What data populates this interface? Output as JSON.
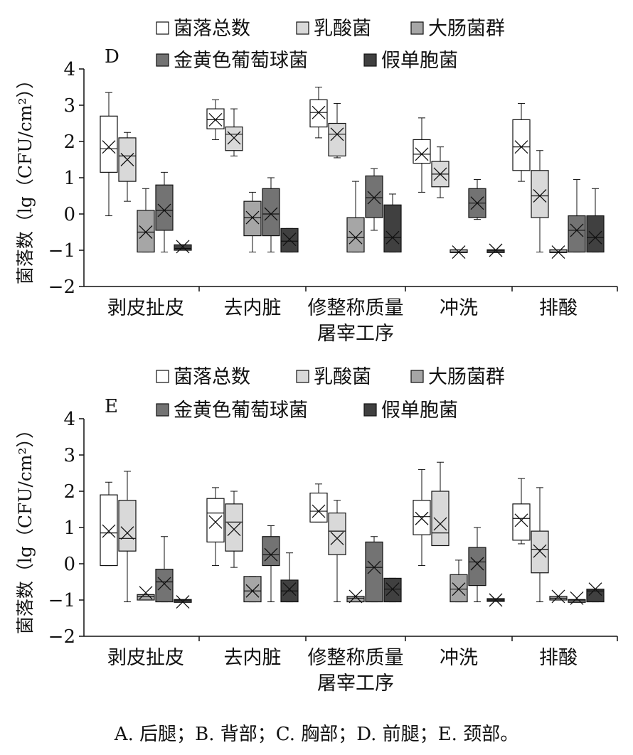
{
  "caption": "A. 后腿；B. 背部；C. 胸部；D. 前腿；E. 颈部。",
  "chart_data": [
    {
      "type": "box",
      "panel_label": "D",
      "xlabel": "屠宰工序",
      "ylabel": "菌落数（lg（CFU/cm²））",
      "ylim": [
        -2,
        4
      ],
      "yticks": [
        "−2",
        "−1",
        "0",
        "1",
        "2",
        "3",
        "4"
      ],
      "categories": [
        "剥皮扯皮",
        "去内脏",
        "修整称质量",
        "冲洗",
        "排酸"
      ],
      "legend": [
        "菌落总数",
        "乳酸菌",
        "大肠菌群",
        "金黄色葡萄球菌",
        "假单胞菌"
      ],
      "colors": [
        "#ffffff",
        "#d9d9d9",
        "#a6a6a6",
        "#737373",
        "#404040"
      ],
      "series": [
        {
          "name": "菌落总数",
          "boxes": [
            {
              "min": -0.05,
              "q1": 1.15,
              "median": 1.8,
              "q3": 2.7,
              "max": 3.35,
              "mean": 1.85
            },
            {
              "min": 2.05,
              "q1": 2.35,
              "median": 2.6,
              "q3": 2.9,
              "max": 3.15,
              "mean": 2.6
            },
            {
              "min": 2.1,
              "q1": 2.4,
              "median": 2.8,
              "q3": 3.15,
              "max": 3.5,
              "mean": 2.8
            },
            {
              "min": 0.6,
              "q1": 1.4,
              "median": 1.65,
              "q3": 2.05,
              "max": 2.65,
              "mean": 1.65
            },
            {
              "min": 0.9,
              "q1": 1.2,
              "median": 1.85,
              "q3": 2.6,
              "max": 3.05,
              "mean": 1.85
            }
          ]
        },
        {
          "name": "乳酸菌",
          "boxes": [
            {
              "min": 0.35,
              "q1": 0.9,
              "median": 1.6,
              "q3": 2.1,
              "max": 2.25,
              "mean": 1.5
            },
            {
              "min": 1.6,
              "q1": 1.75,
              "median": 2.2,
              "q3": 2.4,
              "max": 2.9,
              "mean": 2.1
            },
            {
              "min": 1.55,
              "q1": 1.6,
              "median": 2.2,
              "q3": 2.5,
              "max": 3.05,
              "mean": 2.2
            },
            {
              "min": 0.45,
              "q1": 0.75,
              "median": 1.1,
              "q3": 1.45,
              "max": 1.85,
              "mean": 1.1
            },
            {
              "min": -1.05,
              "q1": -0.1,
              "median": 0.5,
              "q3": 1.2,
              "max": 1.75,
              "mean": 0.5
            }
          ]
        },
        {
          "name": "大肠菌群",
          "boxes": [
            {
              "min": -1.05,
              "q1": -1.05,
              "median": -0.5,
              "q3": 0.1,
              "max": 0.7,
              "mean": -0.5
            },
            {
              "min": -1.05,
              "q1": -0.6,
              "median": -0.1,
              "q3": 0.35,
              "max": 0.6,
              "mean": -0.1
            },
            {
              "min": -1.05,
              "q1": -1.05,
              "median": -0.65,
              "q3": -0.1,
              "max": 0.9,
              "mean": -0.65
            },
            {
              "min": -1.05,
              "q1": -1.05,
              "median": -1.05,
              "q3": -1.0,
              "max": -1.0,
              "mean": -1.05
            },
            {
              "min": -1.05,
              "q1": -1.05,
              "median": -1.05,
              "q3": -1.0,
              "max": -1.0,
              "mean": -1.05
            }
          ]
        },
        {
          "name": "金黄色葡萄球菌",
          "boxes": [
            {
              "min": -1.05,
              "q1": -0.45,
              "median": 0.1,
              "q3": 0.8,
              "max": 1.15,
              "mean": 0.1
            },
            {
              "min": -1.05,
              "q1": -0.6,
              "median": 0.0,
              "q3": 0.7,
              "max": 1.0,
              "mean": 0.0
            },
            {
              "min": -0.45,
              "q1": -0.1,
              "median": 0.45,
              "q3": 1.05,
              "max": 1.25,
              "mean": 0.45
            },
            {
              "min": -0.15,
              "q1": -0.1,
              "median": 0.3,
              "q3": 0.7,
              "max": 0.95,
              "mean": 0.3
            },
            {
              "min": -1.05,
              "q1": -1.05,
              "median": -0.45,
              "q3": -0.05,
              "max": 0.95,
              "mean": -0.45
            }
          ]
        },
        {
          "name": "假单胞菌",
          "boxes": [
            {
              "min": -1.0,
              "q1": -1.0,
              "median": -0.95,
              "q3": -0.85,
              "max": -0.85,
              "mean": -0.9
            },
            {
              "min": -1.05,
              "q1": -1.05,
              "median": -0.75,
              "q3": -0.4,
              "max": -0.4,
              "mean": -0.7
            },
            {
              "min": -1.05,
              "q1": -1.05,
              "median": -0.65,
              "q3": 0.25,
              "max": 0.55,
              "mean": -0.65
            },
            {
              "min": -1.05,
              "q1": -1.05,
              "median": -1.0,
              "q3": -1.0,
              "max": -1.0,
              "mean": -1.0
            },
            {
              "min": -1.05,
              "q1": -1.05,
              "median": -0.65,
              "q3": -0.05,
              "max": 0.7,
              "mean": -0.65
            }
          ]
        }
      ]
    },
    {
      "type": "box",
      "panel_label": "E",
      "xlabel": "屠宰工序",
      "ylabel": "菌落数（lg（CFU/cm²））",
      "ylim": [
        -2,
        4
      ],
      "yticks": [
        "−2",
        "−1",
        "0",
        "1",
        "2",
        "3",
        "4"
      ],
      "categories": [
        "剥皮扯皮",
        "去内脏",
        "修整称质量",
        "冲洗",
        "排酸"
      ],
      "legend": [
        "菌落总数",
        "乳酸菌",
        "大肠菌群",
        "金黄色葡萄球菌",
        "假单胞菌"
      ],
      "colors": [
        "#ffffff",
        "#d9d9d9",
        "#a6a6a6",
        "#737373",
        "#404040"
      ],
      "series": [
        {
          "name": "菌落总数",
          "boxes": [
            {
              "min": -0.05,
              "q1": -0.05,
              "median": 0.85,
              "q3": 1.9,
              "max": 2.25,
              "mean": 0.9
            },
            {
              "min": -0.05,
              "q1": 0.6,
              "median": 1.4,
              "q3": 1.8,
              "max": 2.1,
              "mean": 1.15
            },
            {
              "min": 1.15,
              "q1": 1.15,
              "median": 1.45,
              "q3": 1.95,
              "max": 2.2,
              "mean": 1.45
            },
            {
              "min": -0.05,
              "q1": 0.8,
              "median": 1.3,
              "q3": 1.75,
              "max": 2.6,
              "mean": 1.25
            },
            {
              "min": 0.55,
              "q1": 0.65,
              "median": 1.25,
              "q3": 1.65,
              "max": 2.35,
              "mean": 1.2
            }
          ]
        },
        {
          "name": "乳酸菌",
          "boxes": [
            {
              "min": -1.05,
              "q1": 0.35,
              "median": 0.7,
              "q3": 1.75,
              "max": 2.55,
              "mean": 0.85
            },
            {
              "min": -0.1,
              "q1": 0.35,
              "median": 1.15,
              "q3": 1.65,
              "max": 2.0,
              "mean": 0.95
            },
            {
              "min": -1.05,
              "q1": 0.25,
              "median": 0.9,
              "q3": 1.4,
              "max": 1.75,
              "mean": 0.7
            },
            {
              "min": 0.5,
              "q1": 0.5,
              "median": 0.85,
              "q3": 2.0,
              "max": 2.8,
              "mean": 1.1
            },
            {
              "min": -1.05,
              "q1": -0.25,
              "median": 0.4,
              "q3": 0.9,
              "max": 2.1,
              "mean": 0.35
            }
          ]
        },
        {
          "name": "大肠菌群",
          "boxes": [
            {
              "min": -1.0,
              "q1": -1.0,
              "median": -0.9,
              "q3": -0.85,
              "max": -0.85,
              "mean": -0.8
            },
            {
              "min": -1.05,
              "q1": -1.05,
              "median": -0.75,
              "q3": -0.35,
              "max": -0.35,
              "mean": -0.75
            },
            {
              "min": -1.05,
              "q1": -1.05,
              "median": -0.95,
              "q3": -0.9,
              "max": -0.9,
              "mean": -0.9
            },
            {
              "min": -1.05,
              "q1": -1.05,
              "median": -0.7,
              "q3": -0.3,
              "max": 0.1,
              "mean": -0.7
            },
            {
              "min": -1.0,
              "q1": -1.0,
              "median": -0.95,
              "q3": -0.9,
              "max": -0.9,
              "mean": -0.9
            }
          ]
        },
        {
          "name": "金黄色葡萄球菌",
          "boxes": [
            {
              "min": -1.05,
              "q1": -1.05,
              "median": -0.5,
              "q3": -0.15,
              "max": 0.75,
              "mean": -0.55
            },
            {
              "min": -1.05,
              "q1": -0.05,
              "median": 0.25,
              "q3": 0.75,
              "max": 1.05,
              "mean": 0.25
            },
            {
              "min": -1.05,
              "q1": -1.05,
              "median": -0.1,
              "q3": 0.6,
              "max": 0.75,
              "mean": -0.1
            },
            {
              "min": -1.05,
              "q1": -0.6,
              "median": 0.05,
              "q3": 0.45,
              "max": 1.0,
              "mean": 0.0
            },
            {
              "min": -1.05,
              "q1": -1.05,
              "median": -1.0,
              "q3": -1.0,
              "max": -1.0,
              "mean": -0.95
            }
          ]
        },
        {
          "name": "假单胞菌",
          "boxes": [
            {
              "min": -1.05,
              "q1": -1.05,
              "median": -1.0,
              "q3": -1.0,
              "max": -1.0,
              "mean": -1.05
            },
            {
              "min": -1.05,
              "q1": -1.05,
              "median": -0.75,
              "q3": -0.45,
              "max": 0.3,
              "mean": -0.7
            },
            {
              "min": -1.05,
              "q1": -1.05,
              "median": -0.7,
              "q3": -0.4,
              "max": -0.4,
              "mean": -0.7
            },
            {
              "min": -1.0,
              "q1": -1.0,
              "median": -1.0,
              "q3": -1.0,
              "max": -1.0,
              "mean": -1.0
            },
            {
              "min": -1.05,
              "q1": -1.05,
              "median": -0.75,
              "q3": -0.7,
              "max": -0.7,
              "mean": -0.7
            }
          ]
        }
      ]
    }
  ]
}
